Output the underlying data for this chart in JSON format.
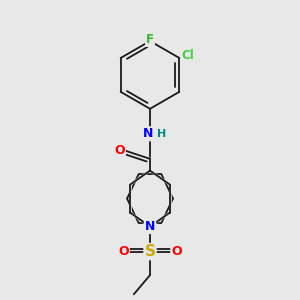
{
  "background_color": "#e8e8e8",
  "bond_color": "#1a1a1a",
  "atom_colors": {
    "F": "#33bb33",
    "Cl": "#44cc44",
    "N": "#0000ff",
    "O": "#ff0000",
    "S": "#ccaa00",
    "H": "#008888",
    "C": "#1a1a1a"
  },
  "figsize": [
    3.0,
    3.0
  ],
  "dpi": 100
}
